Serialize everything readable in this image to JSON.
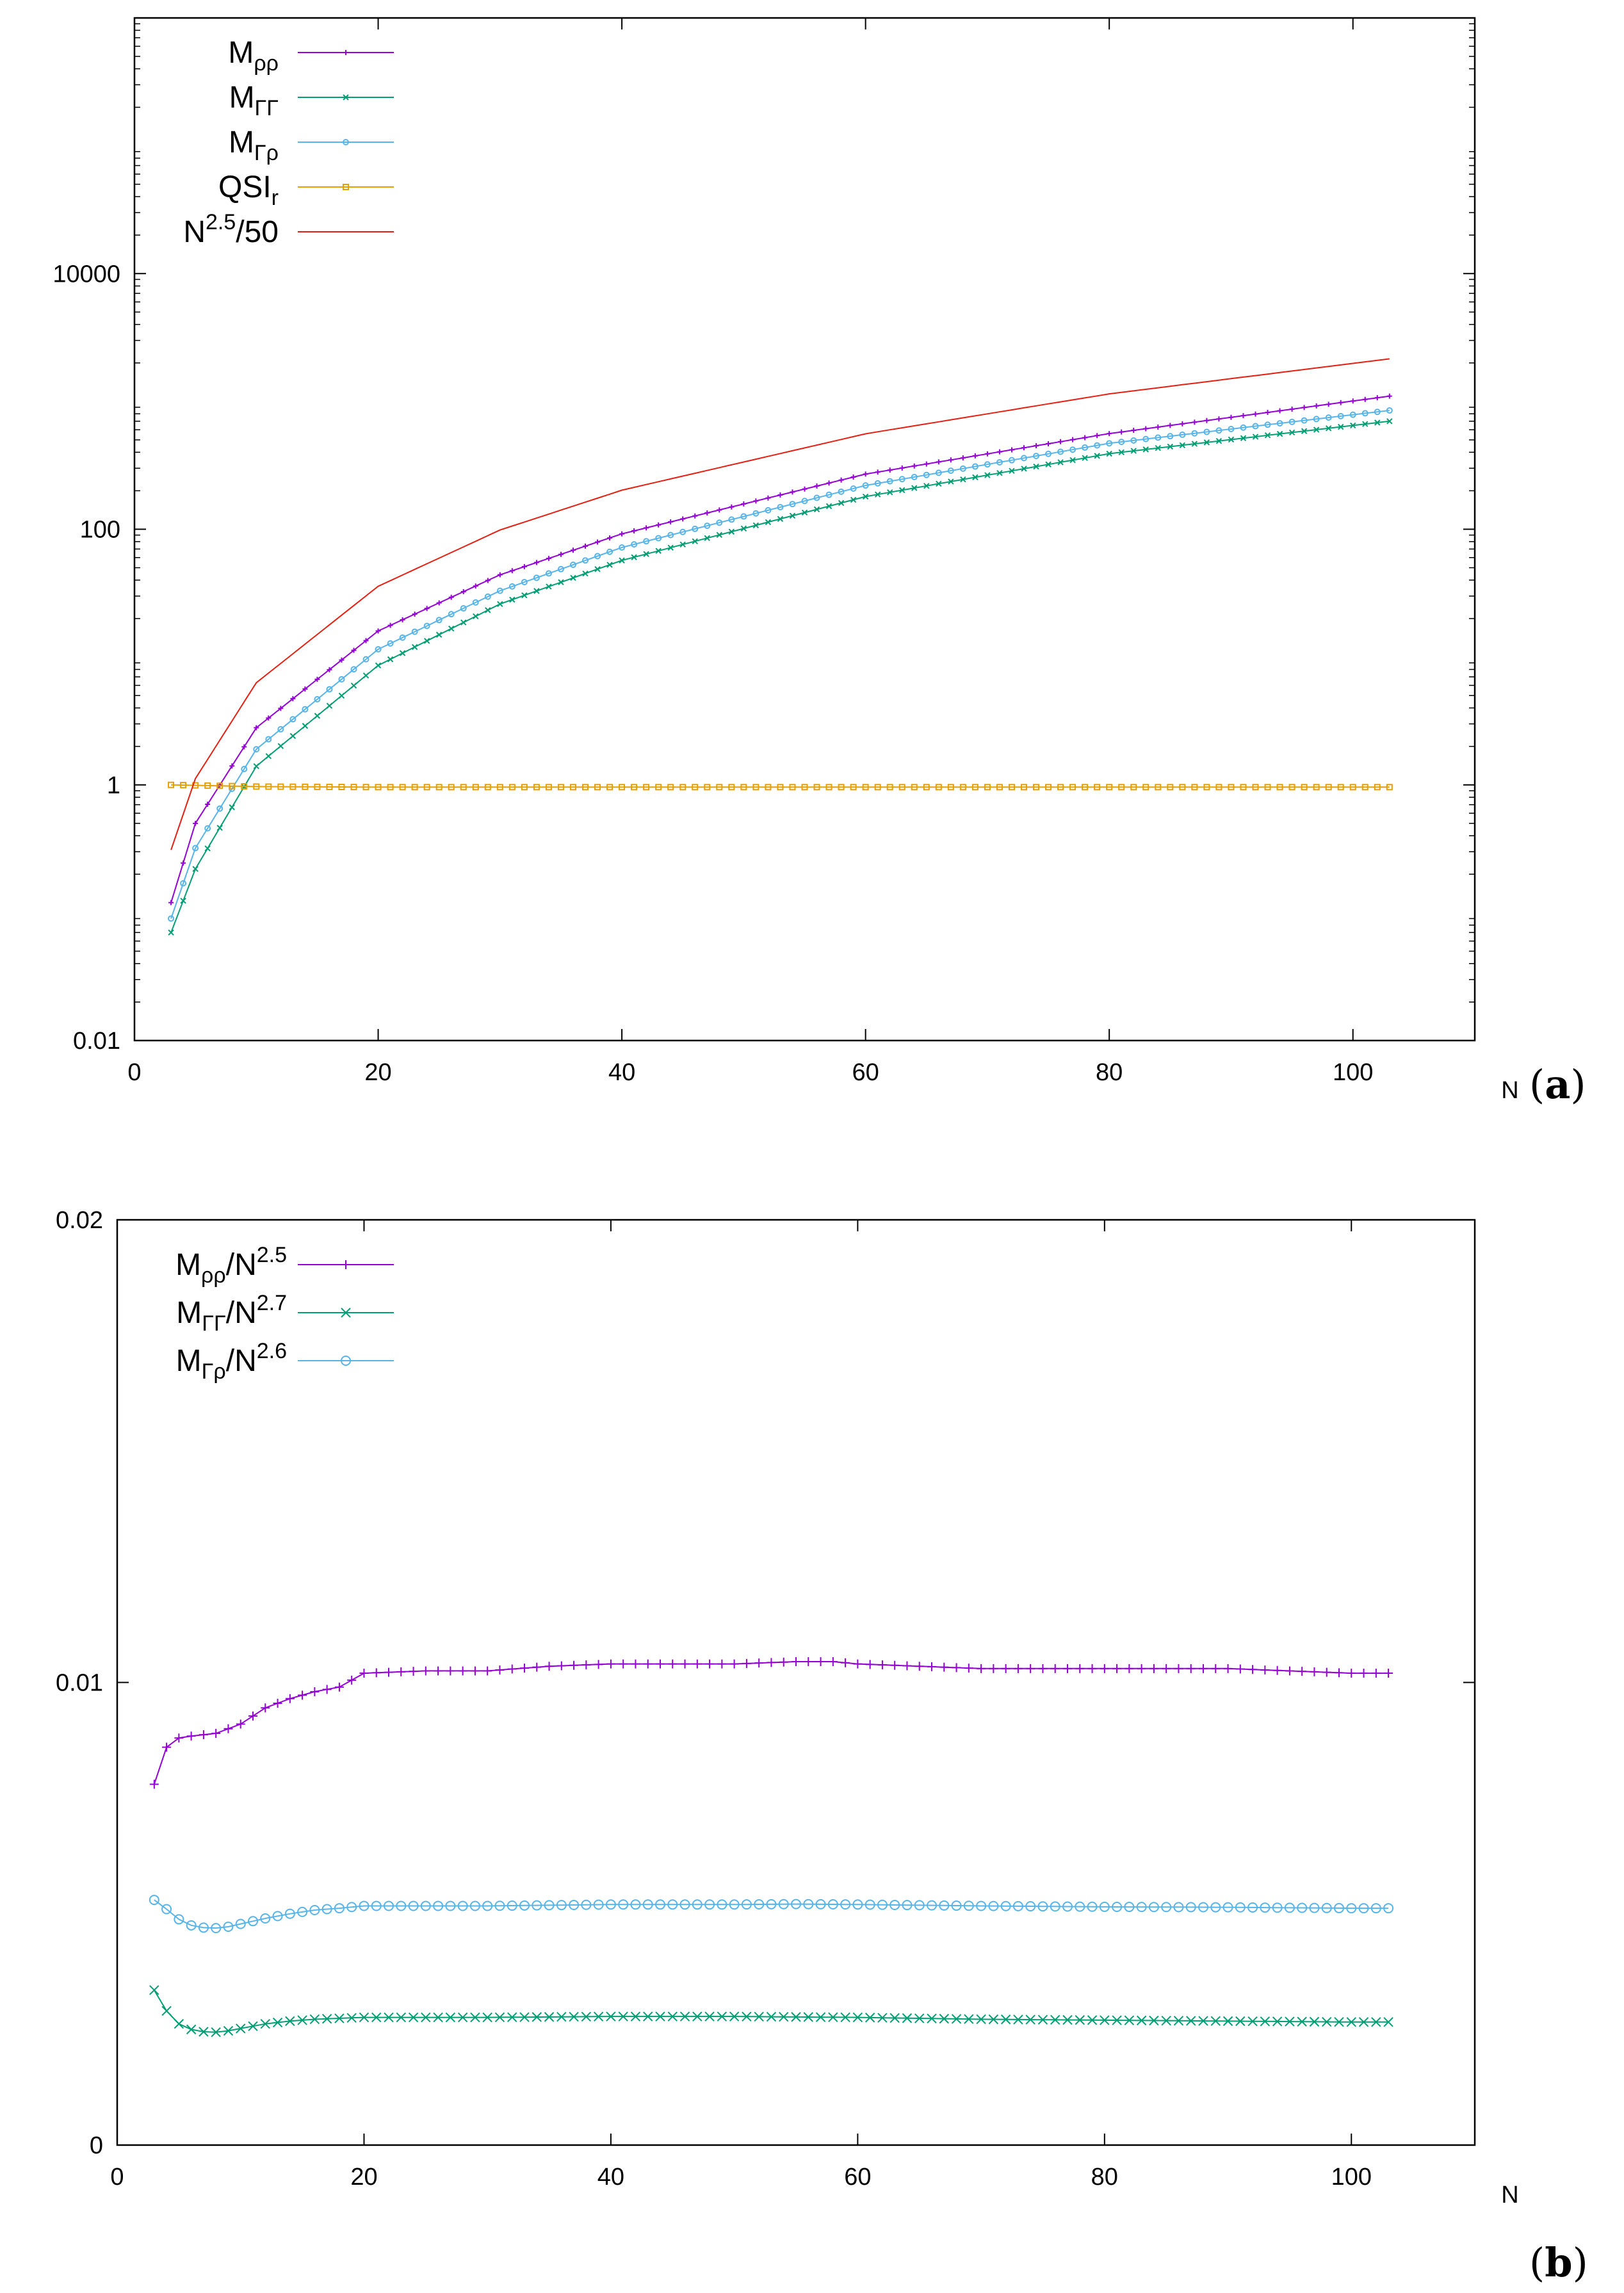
{
  "panels": {
    "a": {
      "label_open": "(",
      "label_letter": "a",
      "label_close": ")"
    },
    "b": {
      "label_open": "(",
      "label_letter": "b",
      "label_close": ")"
    }
  },
  "chart_data": [
    {
      "id": "a",
      "type": "line",
      "yscale": "log",
      "xlabel": "N",
      "ylabel": "",
      "xlim": [
        0,
        110
      ],
      "ylim": [
        0.01,
        1000000
      ],
      "xticks": [
        "0",
        "20",
        "40",
        "60",
        "80",
        "100"
      ],
      "yticks": [
        "0.01",
        "1",
        "100",
        "10000"
      ],
      "legend_position": "top-left",
      "series": [
        {
          "key": "Mrr",
          "name": "M_ρρ",
          "color": "#9400d3",
          "marker": "plus",
          "x": [
            3,
            5,
            10,
            20,
            30,
            40,
            60,
            80,
            103
          ],
          "y": [
            0.12,
            0.5,
            2.8,
            16,
            44,
            92,
            270,
            560,
            1100
          ]
        },
        {
          "key": "MGG",
          "name": "M_ΓΓ",
          "color": "#009e73",
          "marker": "cross",
          "x": [
            3,
            5,
            10,
            20,
            30,
            40,
            60,
            80,
            103
          ],
          "y": [
            0.07,
            0.22,
            1.4,
            8.6,
            26,
            57,
            180,
            390,
            700
          ]
        },
        {
          "key": "MGr",
          "name": "M_Γρ",
          "color": "#56b4e9",
          "marker": "circle",
          "x": [
            3,
            5,
            10,
            20,
            30,
            40,
            60,
            80,
            103
          ],
          "y": [
            0.09,
            0.32,
            1.9,
            11.5,
            33,
            72,
            220,
            470,
            850
          ]
        },
        {
          "key": "QSI",
          "name": "QSI_r",
          "color": "#e69f00",
          "marker": "square",
          "x": [
            3,
            10,
            20,
            40,
            60,
            80,
            103
          ],
          "y": [
            1.0,
            0.97,
            0.96,
            0.96,
            0.96,
            0.96,
            0.96
          ]
        },
        {
          "key": "N25",
          "name": "N^2.5/50",
          "color": "#e51e10",
          "marker": "none",
          "x": [
            3,
            5,
            10,
            20,
            30,
            40,
            60,
            80,
            103
          ],
          "y": [
            0.31,
            1.12,
            6.3,
            35.8,
            98.6,
            202,
            558,
            1145,
            2154
          ]
        }
      ],
      "legend": [
        {
          "key": "Mrr",
          "base": "M",
          "sub": "ρρ",
          "sup": "",
          "tail": ""
        },
        {
          "key": "MGG",
          "base": "M",
          "sub": "ΓΓ",
          "sup": "",
          "tail": ""
        },
        {
          "key": "MGr",
          "base": "M",
          "sub": "Γρ",
          "sup": "",
          "tail": ""
        },
        {
          "key": "QSI",
          "base": "QSI",
          "sub": "r",
          "sup": "",
          "tail": ""
        },
        {
          "key": "N25",
          "base": "N",
          "sub": "",
          "sup": "2.5",
          "tail": "/50"
        }
      ]
    },
    {
      "id": "b",
      "type": "line",
      "yscale": "linear",
      "xlabel": "N",
      "ylabel": "",
      "xlim": [
        0,
        110
      ],
      "ylim": [
        0,
        0.02
      ],
      "xticks": [
        "0",
        "20",
        "40",
        "60",
        "80",
        "100"
      ],
      "yticks": [
        "0",
        "0.01",
        "0.02"
      ],
      "legend_position": "top-left",
      "series": [
        {
          "key": "Mrr",
          "name": "M_ρρ/N^2.5",
          "color": "#9400d3",
          "marker": "plus",
          "x": [
            3,
            4,
            5,
            6,
            8,
            10,
            12,
            14,
            16,
            18,
            20,
            25,
            30,
            35,
            40,
            45,
            50,
            55,
            58,
            60,
            65,
            70,
            80,
            90,
            100,
            103
          ],
          "y": [
            0.0078,
            0.0086,
            0.0088,
            0.00884,
            0.0089,
            0.0091,
            0.00945,
            0.00965,
            0.0098,
            0.0099,
            0.0102,
            0.01025,
            0.01025,
            0.01035,
            0.0104,
            0.0104,
            0.0104,
            0.01045,
            0.01045,
            0.0104,
            0.01035,
            0.0103,
            0.0103,
            0.0103,
            0.0102,
            0.0102
          ]
        },
        {
          "key": "MGG",
          "name": "M_ΓΓ/N^2.7",
          "color": "#009e73",
          "marker": "cross",
          "x": [
            3,
            4,
            5,
            6,
            7,
            8,
            9,
            10,
            12,
            14,
            16,
            18,
            20,
            25,
            30,
            40,
            50,
            60,
            70,
            80,
            90,
            100,
            103
          ],
          "y": [
            0.00335,
            0.0029,
            0.00262,
            0.0025,
            0.00245,
            0.00244,
            0.00247,
            0.00252,
            0.00262,
            0.00268,
            0.00272,
            0.00274,
            0.00276,
            0.00276,
            0.00276,
            0.00278,
            0.00278,
            0.00276,
            0.00272,
            0.0027,
            0.00268,
            0.00266,
            0.00266
          ]
        },
        {
          "key": "MGr",
          "name": "M_Γρ/N^2.6",
          "color": "#56b4e9",
          "marker": "circle",
          "x": [
            3,
            4,
            5,
            6,
            7,
            8,
            9,
            10,
            12,
            14,
            16,
            18,
            20,
            25,
            30,
            40,
            50,
            55,
            60,
            70,
            80,
            90,
            100,
            103
          ],
          "y": [
            0.0053,
            0.0051,
            0.00488,
            0.00475,
            0.0047,
            0.00469,
            0.00472,
            0.00478,
            0.0049,
            0.005,
            0.00508,
            0.00512,
            0.00517,
            0.00517,
            0.00517,
            0.0052,
            0.0052,
            0.00521,
            0.0052,
            0.00517,
            0.00515,
            0.00514,
            0.00512,
            0.00512
          ]
        }
      ],
      "legend": [
        {
          "key": "Mrr",
          "base": "M",
          "sub": "ρρ",
          "mid": "/N",
          "sup": "2.5"
        },
        {
          "key": "MGG",
          "base": "M",
          "sub": "ΓΓ",
          "mid": "/N",
          "sup": "2.7"
        },
        {
          "key": "MGr",
          "base": "M",
          "sub": "Γρ",
          "mid": "/N",
          "sup": "2.6"
        }
      ]
    }
  ]
}
